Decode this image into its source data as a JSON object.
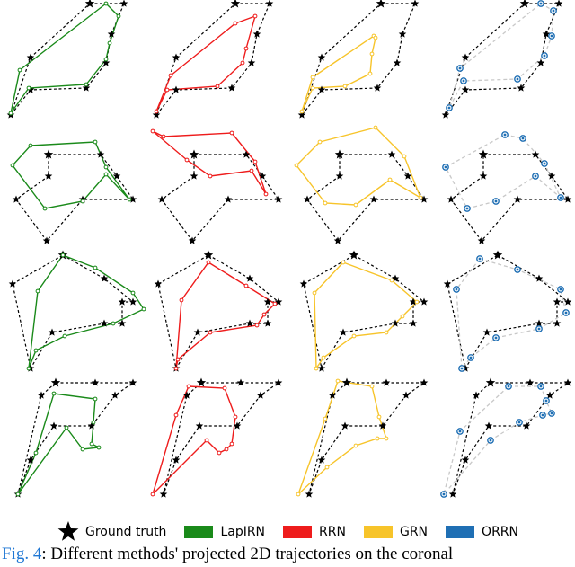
{
  "legend": {
    "ground_truth": "Ground truth",
    "lapirn": "LapIRN",
    "rrn": "RRN",
    "grn": "GRN",
    "orrn": "ORRN"
  },
  "colors": {
    "ground_truth": "#000000",
    "lapirn": "#1a8a1a",
    "rrn": "#ee1c1c",
    "grn": "#f7c42a",
    "orrn": "#1f6fb4",
    "orrn_link": "#c8c8c8"
  },
  "caption": {
    "label": "Fig. 4",
    "text": ": Different methods' projected 2D trajectories on the coronal"
  },
  "chart_data": {
    "type": "trajectory-grid",
    "columns": [
      "LapIRN",
      "RRN",
      "GRN",
      "ORRN"
    ],
    "rows": [
      {
        "gt": [
          [
            100,
            4
          ],
          [
            138,
            4
          ],
          [
            124,
            38
          ],
          [
            118,
            70
          ],
          [
            96,
            98
          ],
          [
            34,
            100
          ],
          [
            12,
            128
          ],
          [
            34,
            64
          ]
        ],
        "pred": [
          [
            [
              118,
              4
            ],
            [
              132,
              18
            ],
            [
              122,
              48
            ],
            [
              118,
              66
            ],
            [
              96,
              94
            ],
            [
              32,
              98
            ],
            [
              12,
              126
            ],
            [
              22,
              78
            ]
          ],
          [
            [
              100,
              26
            ],
            [
              122,
              18
            ],
            [
              112,
              54
            ],
            [
              108,
              70
            ],
            [
              80,
              96
            ],
            [
              24,
              100
            ],
            [
              12,
              124
            ],
            [
              28,
              84
            ]
          ],
          [
            [
              92,
              40
            ],
            [
              94,
              42
            ],
            [
              90,
              60
            ],
            [
              88,
              82
            ],
            [
              60,
              96
            ],
            [
              24,
              98
            ],
            [
              12,
              124
            ],
            [
              24,
              86
            ]
          ],
          [
            [
              118,
              4
            ],
            [
              132,
              12
            ],
            [
              130,
              40
            ],
            [
              122,
              62
            ],
            [
              92,
              88
            ],
            [
              32,
              90
            ],
            [
              16,
              120
            ],
            [
              28,
              76
            ]
          ]
        ]
      },
      {
        "gt": [
          [
            54,
            172
          ],
          [
            112,
            172
          ],
          [
            130,
            196
          ],
          [
            148,
            222
          ],
          [
            92,
            222
          ],
          [
            52,
            268
          ],
          [
            18,
            222
          ],
          [
            54,
            196
          ]
        ],
        "pred": [
          [
            [
              34,
              162
            ],
            [
              106,
              158
            ],
            [
              118,
              186
            ],
            [
              144,
              222
            ],
            [
              118,
              194
            ],
            [
              92,
              224
            ],
            [
              50,
              232
            ],
            [
              14,
              184
            ]
          ],
          [
            [
              20,
              152
            ],
            [
              96,
              148
            ],
            [
              122,
              180
            ],
            [
              134,
              216
            ],
            [
              118,
              190
            ],
            [
              72,
              196
            ],
            [
              46,
              178
            ],
            [
              8,
              146
            ]
          ],
          [
            [
              32,
              158
            ],
            [
              94,
              142
            ],
            [
              126,
              174
            ],
            [
              144,
              220
            ],
            [
              110,
              200
            ],
            [
              72,
              228
            ],
            [
              38,
              226
            ],
            [
              6,
              184
            ]
          ],
          [
            [
              78,
              150
            ],
            [
              98,
              154
            ],
            [
              122,
              182
            ],
            [
              140,
              220
            ],
            [
              112,
              196
            ],
            [
              68,
              224
            ],
            [
              36,
              232
            ],
            [
              12,
              186
            ]
          ]
        ]
      },
      {
        "gt": [
          [
            70,
            284
          ],
          [
            116,
            310
          ],
          [
            148,
            336
          ],
          [
            136,
            336
          ],
          [
            136,
            360
          ],
          [
            116,
            360
          ],
          [
            58,
            370
          ],
          [
            34,
            410
          ],
          [
            14,
            316
          ]
        ],
        "pred": [
          [
            [
              70,
              284
            ],
            [
              106,
              298
            ],
            [
              148,
              326
            ],
            [
              160,
              344
            ],
            [
              126,
              360
            ],
            [
              72,
              374
            ],
            [
              40,
              390
            ],
            [
              32,
              410
            ],
            [
              42,
              324
            ]
          ],
          [
            [
              70,
              292
            ],
            [
              112,
              318
            ],
            [
              144,
              338
            ],
            [
              132,
              350
            ],
            [
              124,
              362
            ],
            [
              72,
              370
            ],
            [
              36,
              400
            ],
            [
              34,
              410
            ],
            [
              40,
              334
            ]
          ],
          [
            [
              58,
              292
            ],
            [
              112,
              312
            ],
            [
              140,
              336
            ],
            [
              124,
              352
            ],
            [
              106,
              370
            ],
            [
              70,
              374
            ],
            [
              36,
              398
            ],
            [
              28,
              410
            ],
            [
              26,
              326
            ]
          ],
          [
            [
              50,
              288
            ],
            [
              92,
              300
            ],
            [
              140,
              322
            ],
            [
              146,
              348
            ],
            [
              116,
              366
            ],
            [
              68,
              376
            ],
            [
              40,
              398
            ],
            [
              30,
              410
            ],
            [
              24,
              322
            ]
          ]
        ]
      },
      {
        "gt": [
          [
            62,
            426
          ],
          [
            106,
            426
          ],
          [
            148,
            426
          ],
          [
            128,
            440
          ],
          [
            102,
            474
          ],
          [
            60,
            474
          ],
          [
            34,
            512
          ],
          [
            20,
            550
          ],
          [
            46,
            440
          ]
        ],
        "pred": [
          [
            [
              60,
              438
            ],
            [
              106,
              444
            ],
            [
              104,
              470
            ],
            [
              102,
              494
            ],
            [
              110,
              498
            ],
            [
              92,
              500
            ],
            [
              74,
              476
            ],
            [
              20,
              550
            ],
            [
              40,
              504
            ]
          ],
          [
            [
              48,
              430
            ],
            [
              88,
              432
            ],
            [
              100,
              464
            ],
            [
              96,
              494
            ],
            [
              90,
              500
            ],
            [
              82,
              504
            ],
            [
              68,
              490
            ],
            [
              8,
              550
            ],
            [
              34,
              462
            ]
          ],
          [
            [
              52,
              424
            ],
            [
              90,
              430
            ],
            [
              98,
              464
            ],
            [
              106,
              488
            ],
            [
              96,
              488
            ],
            [
              72,
              496
            ],
            [
              40,
              520
            ],
            [
              8,
              550
            ],
            [
              38,
              466
            ]
          ],
          [
            [
              82,
              430
            ],
            [
              118,
              430
            ],
            [
              124,
              446
            ],
            [
              130,
              460
            ],
            [
              120,
              462
            ],
            [
              94,
              470
            ],
            [
              62,
              490
            ],
            [
              10,
              550
            ],
            [
              28,
              480
            ]
          ]
        ]
      }
    ]
  }
}
